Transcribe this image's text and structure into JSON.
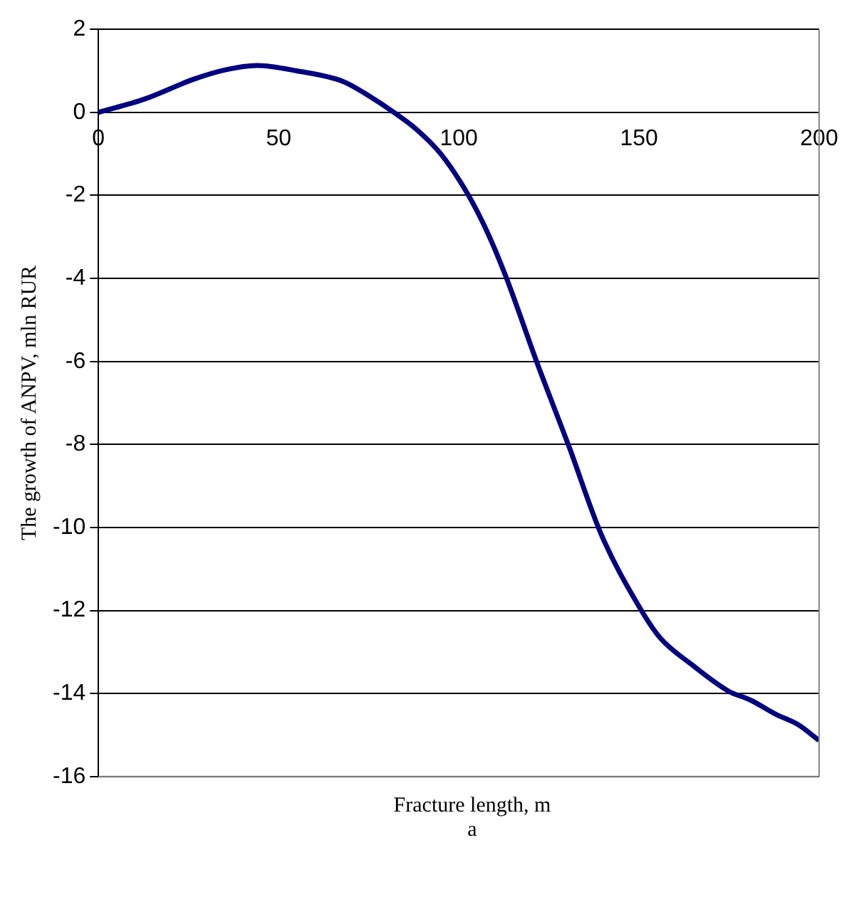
{
  "chart_data": {
    "type": "line",
    "xlabel": "Fracture length, m",
    "ylabel": "The growth of ANPV, mln RUR",
    "annotations": [
      "a"
    ],
    "xlim": [
      0,
      200
    ],
    "xticks": [
      0,
      50,
      100,
      150,
      200
    ],
    "ylim": [
      -16,
      2
    ],
    "yticks": [
      -16,
      -14,
      -12,
      -10,
      -8,
      -6,
      -4,
      -2,
      0,
      2
    ],
    "grid": "y",
    "legend": false,
    "marker": "none",
    "line_style": "solid",
    "series": [
      {
        "color": "#000080",
        "x": [
          0,
          12.8,
          26.5,
          35,
          44,
          55,
          68,
          75,
          82,
          88,
          95,
          102.7,
          108,
          113,
          122,
          130.5,
          139.5,
          150,
          155.8,
          164.6,
          174.8,
          181,
          188,
          194,
          200
        ],
        "values": [
          0,
          0.32,
          0.8,
          1.02,
          1.13,
          1.0,
          0.74,
          0.4,
          0,
          -0.39,
          -1.0,
          -2,
          -2.9,
          -3.94,
          -6.1,
          -8.03,
          -10.16,
          -11.9,
          -12.65,
          -13.3,
          -13.94,
          -14.16,
          -14.5,
          -14.74,
          -15.13
        ]
      }
    ]
  }
}
